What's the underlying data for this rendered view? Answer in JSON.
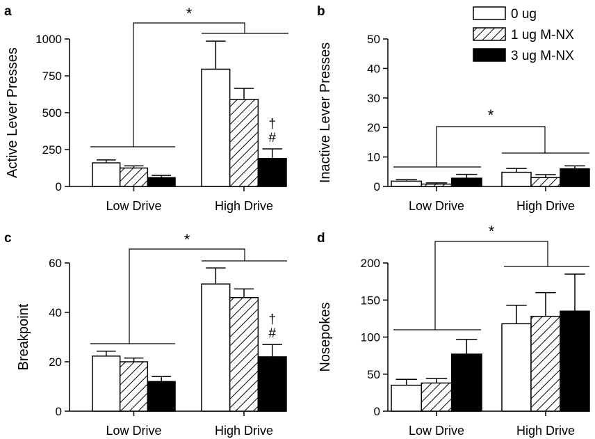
{
  "legend": {
    "items": [
      {
        "label": "0 ug",
        "pattern": "white"
      },
      {
        "label": "1 ug M-NX",
        "pattern": "hatch"
      },
      {
        "label": "3 ug M-NX",
        "pattern": "black"
      }
    ]
  },
  "chart_data": [
    {
      "panel": "a",
      "type": "bar",
      "ylabel": "Active Lever Presses",
      "ylim": [
        0,
        1000
      ],
      "yticks": [
        0,
        250,
        500,
        750,
        1000
      ],
      "categories": [
        "Low Drive",
        "High Drive"
      ],
      "series": [
        {
          "name": "0 ug",
          "values": [
            160,
            795
          ],
          "errors": [
            20,
            190
          ]
        },
        {
          "name": "1 ug M-NX",
          "values": [
            125,
            590
          ],
          "errors": [
            15,
            75
          ]
        },
        {
          "name": "3 ug M-NX",
          "values": [
            60,
            190
          ],
          "errors": [
            15,
            65
          ]
        }
      ],
      "bar_annotations": [
        {
          "category": 1,
          "series": 2,
          "text": "†\n#"
        }
      ],
      "significance": "*"
    },
    {
      "panel": "b",
      "type": "bar",
      "ylabel": "Inactive Lever Presses",
      "ylim": [
        0,
        50
      ],
      "yticks": [
        0,
        10,
        20,
        30,
        40,
        50
      ],
      "categories": [
        "Low Drive",
        "High Drive"
      ],
      "series": [
        {
          "name": "0 ug",
          "values": [
            1.8,
            4.8
          ],
          "errors": [
            0.5,
            1.3
          ]
        },
        {
          "name": "1 ug M-NX",
          "values": [
            0.8,
            3.0
          ],
          "errors": [
            0.4,
            1.0
          ]
        },
        {
          "name": "3 ug M-NX",
          "values": [
            2.8,
            6.0
          ],
          "errors": [
            1.3,
            1.0
          ]
        }
      ],
      "significance": "*"
    },
    {
      "panel": "c",
      "type": "bar",
      "ylabel": "Breakpoint",
      "ylim": [
        0,
        60
      ],
      "yticks": [
        0,
        20,
        40,
        60
      ],
      "categories": [
        "Low Drive",
        "High Drive"
      ],
      "series": [
        {
          "name": "0 ug",
          "values": [
            22.3,
            51.5
          ],
          "errors": [
            2.0,
            6.5
          ]
        },
        {
          "name": "1 ug M-NX",
          "values": [
            20.0,
            46.0
          ],
          "errors": [
            1.5,
            3.5
          ]
        },
        {
          "name": "3 ug M-NX",
          "values": [
            12.0,
            22.0
          ],
          "errors": [
            2.0,
            5.0
          ]
        }
      ],
      "bar_annotations": [
        {
          "category": 1,
          "series": 2,
          "text": "†\n#"
        }
      ],
      "significance": "*"
    },
    {
      "panel": "d",
      "type": "bar",
      "ylabel": "Nosepokes",
      "ylim": [
        0,
        200
      ],
      "yticks": [
        0,
        50,
        100,
        150,
        200
      ],
      "categories": [
        "Low Drive",
        "High Drive"
      ],
      "series": [
        {
          "name": "0 ug",
          "values": [
            35,
            118
          ],
          "errors": [
            8,
            25
          ]
        },
        {
          "name": "1 ug M-NX",
          "values": [
            38,
            128
          ],
          "errors": [
            6,
            32
          ]
        },
        {
          "name": "3 ug M-NX",
          "values": [
            77,
            135
          ],
          "errors": [
            20,
            50
          ]
        }
      ],
      "significance": "*"
    }
  ]
}
